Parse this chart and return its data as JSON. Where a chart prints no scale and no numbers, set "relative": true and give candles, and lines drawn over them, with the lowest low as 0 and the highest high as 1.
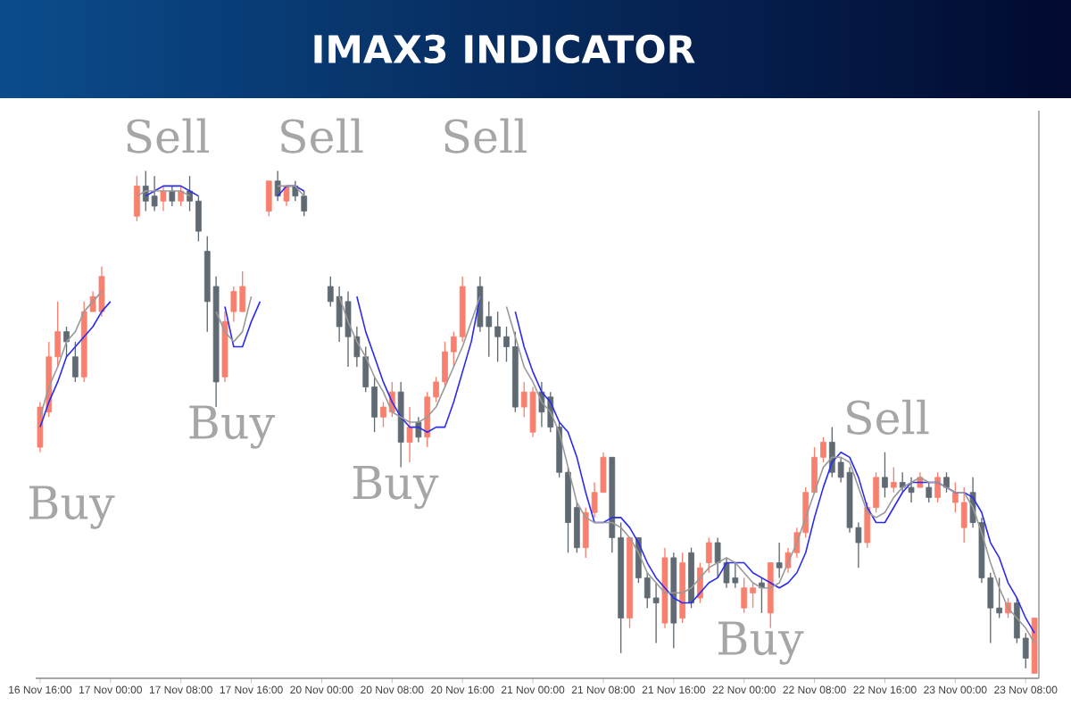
{
  "chart_data": {
    "type": "candlestick",
    "title": "IMAX3 INDICATOR",
    "relative": true,
    "tick_labels": "x",
    "categories": [
      "16 Nov 16:00",
      null,
      null,
      null,
      null,
      null,
      null,
      null,
      "17 Nov 00:00",
      null,
      null,
      null,
      null,
      null,
      null,
      null,
      "17 Nov 08:00",
      null,
      null,
      null,
      null,
      null,
      null,
      null,
      "17 Nov 16:00",
      null,
      null,
      null,
      null,
      null,
      null,
      null,
      "20 Nov 00:00",
      null,
      null,
      null,
      null,
      null,
      null,
      null,
      "20 Nov 08:00",
      null,
      null,
      null,
      null,
      null,
      null,
      null,
      "20 Nov 16:00",
      null,
      null,
      null,
      null,
      null,
      null,
      null,
      "21 Nov 00:00",
      null,
      null,
      null,
      null,
      null,
      null,
      null,
      "21 Nov 08:00",
      null,
      null,
      null,
      null,
      null,
      null,
      null,
      "21 Nov 16:00",
      null,
      null,
      null,
      null,
      null,
      null,
      null,
      "22 Nov 00:00",
      null,
      null,
      null,
      null,
      null,
      null,
      null,
      "22 Nov 08:00",
      null,
      null,
      null,
      null,
      null,
      null,
      null,
      "22 Nov 16:00",
      null,
      null,
      null,
      null,
      null,
      null,
      null,
      "23 Nov 00:00",
      null,
      null,
      null,
      null,
      null,
      null,
      null,
      "23 Nov 08:00",
      null
    ],
    "ohlc": [
      [
        0.45,
        0.54,
        0.44,
        0.53
      ],
      [
        0.52,
        0.66,
        0.51,
        0.63
      ],
      [
        0.63,
        0.74,
        0.61,
        0.68
      ],
      [
        0.68,
        0.69,
        0.63,
        0.66
      ],
      [
        0.63,
        0.66,
        0.58,
        0.59
      ],
      [
        0.59,
        0.74,
        0.58,
        0.72
      ],
      [
        0.72,
        0.76,
        0.72,
        0.75
      ],
      [
        0.72,
        0.81,
        0.71,
        0.79
      ],
      null,
      null,
      null,
      [
        0.91,
        0.99,
        0.9,
        0.97
      ],
      [
        0.97,
        1.0,
        0.92,
        0.94
      ],
      [
        0.95,
        0.99,
        0.92,
        0.93
      ],
      [
        0.94,
        0.97,
        0.92,
        0.96
      ],
      [
        0.96,
        0.97,
        0.93,
        0.94
      ],
      [
        0.94,
        0.97,
        0.93,
        0.96
      ],
      [
        0.96,
        0.99,
        0.92,
        0.94
      ],
      [
        0.94,
        0.95,
        0.86,
        0.88
      ],
      [
        0.84,
        0.87,
        0.68,
        0.74
      ],
      [
        0.77,
        0.79,
        0.53,
        0.58
      ],
      [
        0.59,
        0.72,
        0.58,
        0.7
      ],
      [
        0.72,
        0.77,
        0.7,
        0.76
      ],
      [
        0.72,
        0.8,
        0.72,
        0.77
      ],
      null,
      null,
      [
        0.92,
        0.98,
        0.91,
        0.98
      ],
      [
        0.98,
        1.0,
        0.94,
        0.95
      ],
      [
        0.94,
        0.97,
        0.93,
        0.97
      ],
      [
        0.97,
        0.98,
        0.94,
        0.95
      ],
      [
        0.95,
        0.96,
        0.91,
        0.92
      ],
      null,
      null,
      [
        0.77,
        0.79,
        0.73,
        0.74
      ],
      [
        0.75,
        0.77,
        0.66,
        0.69
      ],
      [
        0.74,
        0.76,
        0.61,
        0.67
      ],
      [
        0.67,
        0.69,
        0.61,
        0.63
      ],
      [
        0.63,
        0.65,
        0.56,
        0.57
      ],
      [
        0.57,
        0.59,
        0.48,
        0.51
      ],
      [
        0.51,
        0.54,
        0.49,
        0.53
      ],
      [
        0.52,
        0.58,
        0.51,
        0.56
      ],
      [
        0.56,
        0.58,
        0.41,
        0.46
      ],
      [
        0.46,
        0.53,
        0.42,
        0.49
      ],
      [
        0.5,
        0.51,
        0.46,
        0.47
      ],
      [
        0.47,
        0.56,
        0.45,
        0.55
      ],
      [
        0.55,
        0.59,
        0.54,
        0.58
      ],
      [
        0.58,
        0.66,
        0.57,
        0.64
      ],
      [
        0.64,
        0.68,
        0.61,
        0.67
      ],
      [
        0.67,
        0.79,
        0.66,
        0.77
      ],
      null,
      [
        0.77,
        0.79,
        0.68,
        0.69
      ],
      [
        0.71,
        0.74,
        0.63,
        0.69
      ],
      [
        0.69,
        0.72,
        0.62,
        0.67
      ],
      [
        0.67,
        0.69,
        0.62,
        0.65
      ],
      [
        0.65,
        0.68,
        0.52,
        0.53
      ],
      [
        0.53,
        0.58,
        0.51,
        0.56
      ],
      [
        0.48,
        0.57,
        0.47,
        0.56
      ],
      [
        0.56,
        0.58,
        0.49,
        0.52
      ],
      [
        0.55,
        0.56,
        0.48,
        0.49
      ],
      [
        0.49,
        0.5,
        0.39,
        0.4
      ],
      [
        0.4,
        0.41,
        0.24,
        0.3
      ],
      [
        0.33,
        0.34,
        0.24,
        0.25
      ],
      [
        0.25,
        0.33,
        0.23,
        0.32
      ],
      [
        0.32,
        0.38,
        0.31,
        0.36
      ],
      [
        0.36,
        0.44,
        0.36,
        0.43
      ],
      [
        0.43,
        0.43,
        0.24,
        0.27
      ],
      [
        0.27,
        0.3,
        0.04,
        0.11
      ],
      [
        0.11,
        0.27,
        0.09,
        0.27
      ],
      [
        0.27,
        0.27,
        0.18,
        0.19
      ],
      [
        0.19,
        0.2,
        0.13,
        0.15
      ],
      [
        0.15,
        0.18,
        0.06,
        0.14
      ],
      [
        0.1,
        0.25,
        0.09,
        0.23
      ],
      [
        0.23,
        0.24,
        0.05,
        0.1
      ],
      [
        0.11,
        0.24,
        0.1,
        0.22
      ],
      [
        0.24,
        0.25,
        0.13,
        0.14
      ],
      [
        0.15,
        0.22,
        0.14,
        0.21
      ],
      [
        0.22,
        0.27,
        0.2,
        0.26
      ],
      [
        0.26,
        0.27,
        0.19,
        0.22
      ],
      [
        0.22,
        0.23,
        0.17,
        0.18
      ],
      [
        0.19,
        0.22,
        0.17,
        0.18
      ],
      [
        0.13,
        0.19,
        0.12,
        0.17
      ],
      [
        0.16,
        0.18,
        0.13,
        0.17
      ],
      [
        0.18,
        0.19,
        0.12,
        0.17
      ],
      [
        0.12,
        0.22,
        0.09,
        0.22
      ],
      [
        0.22,
        0.26,
        0.19,
        0.21
      ],
      [
        0.21,
        0.25,
        0.2,
        0.24
      ],
      [
        0.24,
        0.29,
        0.23,
        0.28
      ],
      [
        0.28,
        0.37,
        0.27,
        0.36
      ],
      [
        0.36,
        0.45,
        0.36,
        0.43
      ],
      [
        0.43,
        0.47,
        0.42,
        0.46
      ],
      [
        0.46,
        0.49,
        0.39,
        0.4
      ],
      [
        0.42,
        0.43,
        0.38,
        0.39
      ],
      [
        0.4,
        0.41,
        0.28,
        0.29
      ],
      [
        0.29,
        0.3,
        0.21,
        0.26
      ],
      [
        0.26,
        0.34,
        0.25,
        0.33
      ],
      [
        0.33,
        0.4,
        0.32,
        0.39
      ],
      [
        0.39,
        0.44,
        0.35,
        0.37
      ],
      [
        0.37,
        0.41,
        0.36,
        0.38
      ],
      [
        0.38,
        0.4,
        0.36,
        0.37
      ],
      [
        0.37,
        0.39,
        0.34,
        0.36
      ],
      [
        0.37,
        0.4,
        0.37,
        0.39
      ],
      [
        0.37,
        0.38,
        0.34,
        0.35
      ],
      [
        0.35,
        0.4,
        0.34,
        0.39
      ],
      [
        0.39,
        0.4,
        0.36,
        0.37
      ],
      [
        0.34,
        0.38,
        0.32,
        0.36
      ],
      [
        0.29,
        0.37,
        0.26,
        0.34
      ],
      [
        0.36,
        0.39,
        0.29,
        0.3
      ],
      [
        0.3,
        0.31,
        0.18,
        0.19
      ],
      [
        0.19,
        0.2,
        0.06,
        0.13
      ],
      [
        0.13,
        0.19,
        0.11,
        0.12
      ],
      [
        0.12,
        0.15,
        0.11,
        0.14
      ],
      [
        0.14,
        0.15,
        0.06,
        0.07
      ],
      [
        0.07,
        0.08,
        0.01,
        0.03
      ],
      [
        0.0,
        0.11,
        0.0,
        0.11
      ]
    ],
    "colors": [
      "#f8806e",
      "#f8806e",
      "#f8806e",
      "#5f6a72",
      "#5f6a72",
      "#f8806e",
      "#f8806e",
      "#f8806e",
      null,
      null,
      null,
      "#f8806e",
      "#5f6a72",
      "#5f6a72",
      "#f8806e",
      "#5f6a72",
      "#f8806e",
      "#5f6a72",
      "#5f6a72",
      "#5f6a72",
      "#5f6a72",
      "#f8806e",
      "#f8806e",
      "#f8806e",
      null,
      null,
      "#f8806e",
      "#5f6a72",
      "#f8806e",
      "#5f6a72",
      "#5f6a72",
      null,
      null,
      "#5f6a72",
      "#5f6a72",
      "#5f6a72",
      "#5f6a72",
      "#5f6a72",
      "#5f6a72",
      "#f8806e",
      "#f8806e",
      "#5f6a72",
      "#f8806e",
      "#5f6a72",
      "#f8806e",
      "#f8806e",
      "#f8806e",
      "#f8806e",
      "#f8806e",
      null,
      "#5f6a72",
      "#5f6a72",
      "#5f6a72",
      "#5f6a72",
      "#5f6a72",
      "#f8806e",
      "#f8806e",
      "#5f6a72",
      "#5f6a72",
      "#5f6a72",
      "#5f6a72",
      "#5f6a72",
      "#f8806e",
      "#f8806e",
      "#f8806e",
      "#5f6a72",
      "#5f6a72",
      "#f8806e",
      "#5f6a72",
      "#5f6a72",
      "#5f6a72",
      "#f8806e",
      "#5f6a72",
      "#f8806e",
      "#5f6a72",
      "#f8806e",
      "#f8806e",
      "#5f6a72",
      "#5f6a72",
      "#5f6a72",
      "#f8806e",
      "#f8806e",
      "#5f6a72",
      "#f8806e",
      "#5f6a72",
      "#f8806e",
      "#f8806e",
      "#f8806e",
      "#f8806e",
      "#f8806e",
      "#5f6a72",
      "#5f6a72",
      "#5f6a72",
      "#5f6a72",
      "#f8806e",
      "#f8806e",
      "#5f6a72",
      "#f8806e",
      "#5f6a72",
      "#5f6a72",
      "#f8806e",
      "#5f6a72",
      "#f8806e",
      "#5f6a72",
      "#f8806e",
      "#f8806e",
      "#5f6a72",
      "#5f6a72",
      "#5f6a72",
      "#5f6a72",
      "#f8806e",
      "#5f6a72",
      "#5f6a72",
      "#f8806e"
    ],
    "series": [
      {
        "type": "line",
        "color": "#2b2bf0",
        "values": [
          0.49,
          0.54,
          0.58,
          0.63,
          0.65,
          0.67,
          0.69,
          0.72,
          0.74,
          null,
          null,
          null,
          0.95,
          0.96,
          0.97,
          0.97,
          0.97,
          0.96,
          0.95,
          null,
          null,
          0.73,
          0.65,
          0.65,
          0.7,
          0.74,
          null,
          0.95,
          0.97,
          0.97,
          0.96,
          null,
          null,
          null,
          null,
          null,
          0.75,
          0.68,
          0.63,
          0.58,
          0.54,
          0.51,
          0.49,
          0.49,
          0.48,
          0.49,
          0.49,
          0.54,
          0.6,
          0.66,
          0.75,
          null,
          null,
          null,
          0.72,
          0.65,
          0.6,
          0.56,
          0.54,
          0.5,
          0.48,
          0.43,
          0.36,
          0.3,
          0.3,
          0.31,
          0.31,
          0.29,
          0.26,
          0.22,
          0.19,
          0.17,
          0.15,
          0.14,
          0.14,
          0.16,
          0.18,
          0.19,
          0.22,
          0.22,
          0.22,
          0.2,
          0.19,
          0.18,
          0.17,
          0.18,
          0.2,
          0.24,
          0.31,
          0.37,
          0.42,
          0.44,
          0.43,
          0.39,
          0.33,
          0.3,
          0.3,
          0.33,
          0.36,
          0.38,
          0.38,
          0.38,
          0.38,
          0.37,
          0.36,
          0.36,
          0.35,
          0.32,
          0.26,
          0.23,
          0.18,
          0.15,
          0.11,
          0.08
        ]
      },
      {
        "type": "line",
        "color": "#9a9a9a",
        "values": [
          0.51,
          0.57,
          0.61,
          0.66,
          0.68,
          0.72,
          0.74,
          0.76,
          null,
          null,
          null,
          0.95,
          0.96,
          0.96,
          0.96,
          0.96,
          0.96,
          0.95,
          null,
          null,
          0.72,
          0.68,
          0.66,
          0.68,
          0.75,
          null,
          null,
          0.97,
          0.97,
          0.97,
          0.95,
          null,
          null,
          null,
          0.75,
          0.7,
          0.66,
          0.63,
          0.59,
          0.56,
          0.52,
          0.51,
          0.5,
          0.5,
          0.51,
          0.53,
          0.57,
          0.61,
          0.65,
          0.7,
          0.75,
          null,
          null,
          0.73,
          0.67,
          0.61,
          0.58,
          0.54,
          0.52,
          0.48,
          0.41,
          0.34,
          0.31,
          0.3,
          0.3,
          0.3,
          0.29,
          0.27,
          0.24,
          0.2,
          0.18,
          0.16,
          0.16,
          0.16,
          0.17,
          0.19,
          0.21,
          0.22,
          0.23,
          0.22,
          0.2,
          0.18,
          0.17,
          0.17,
          0.18,
          0.22,
          0.26,
          0.31,
          0.36,
          0.41,
          0.43,
          0.43,
          0.42,
          0.37,
          0.32,
          0.31,
          0.32,
          0.35,
          0.37,
          0.38,
          0.39,
          0.38,
          0.38,
          0.37,
          0.36,
          0.36,
          0.33,
          0.28,
          0.22,
          0.17,
          0.13,
          0.11,
          0.09,
          0.06
        ]
      }
    ],
    "annotations": [
      "Sell",
      "Sell",
      "Sell",
      "Buy",
      "Buy",
      "Buy",
      "Buy",
      "Sell"
    ]
  }
}
